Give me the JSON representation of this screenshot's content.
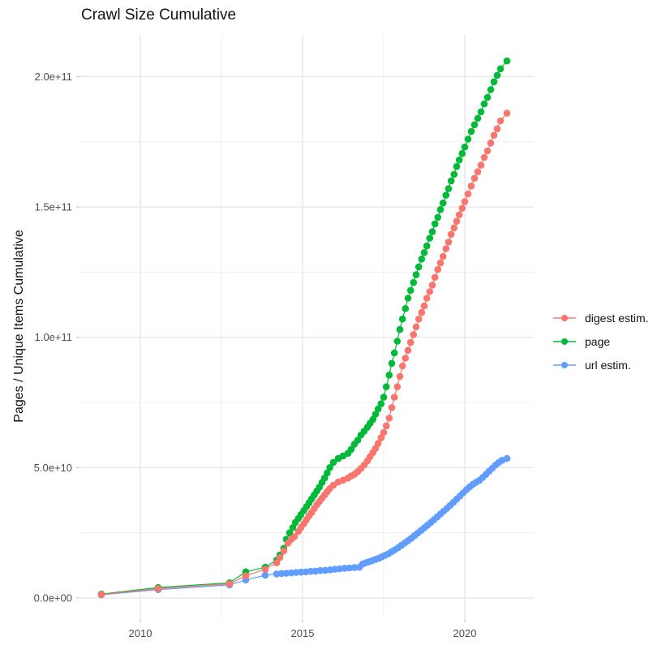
{
  "title": "Crawl Size Cumulative",
  "axes": {
    "y_title": "Pages / Unique Items Cumulative",
    "x_ticks": [
      {
        "v": 2010,
        "label": "2010"
      },
      {
        "v": 2015,
        "label": "2015"
      },
      {
        "v": 2020,
        "label": "2020"
      }
    ],
    "x_minor": [
      2012.5,
      2017.5
    ],
    "y_ticks": [
      {
        "v": 0,
        "label": "0.0e+00"
      },
      {
        "v": 50,
        "label": "5.0e+10"
      },
      {
        "v": 100,
        "label": "1.0e+11"
      },
      {
        "v": 150,
        "label": "1.5e+11"
      },
      {
        "v": 200,
        "label": "2.0e+11"
      }
    ],
    "y_minor": [
      25,
      75,
      125,
      175
    ],
    "grid": "on",
    "major_grid_color": "#e3e3e3",
    "minor_grid_color": "#f0f0f0",
    "tick_color": "#bdbdbd",
    "tick_label_color": "#4d4d4d"
  },
  "legend": {
    "position": "right",
    "entries": [
      {
        "label": "digest estim.",
        "color": "#F8766D"
      },
      {
        "label": "page",
        "color": "#00BA38"
      },
      {
        "label": "url estim.",
        "color": "#619CFF"
      }
    ]
  },
  "chart_data": {
    "type": "scatter",
    "mode": "line+points",
    "title": "Crawl Size Cumulative",
    "xlabel": "",
    "ylabel": "Pages / Unique Items Cumulative",
    "x_unit": "year (decimal)",
    "value_unit": "pages, stored in billions (1e9)",
    "xlim": [
      2008.125,
      2022.125
    ],
    "ylim_billion": [
      -8.1,
      216
    ],
    "series": [
      {
        "name": "digest estim.",
        "color": "#F8766D",
        "z": 3,
        "points": [
          [
            2008.8,
            1.3
          ],
          [
            2010.55,
            3.6
          ],
          [
            2012.75,
            5.4
          ],
          [
            2013.25,
            8.5
          ],
          [
            2013.85,
            11
          ],
          [
            2014.2,
            13.5
          ],
          [
            2014.3,
            15.5
          ],
          [
            2014.42,
            18
          ],
          [
            2014.55,
            21
          ],
          [
            2014.65,
            22.5
          ],
          [
            2014.75,
            23.5
          ],
          [
            2014.87,
            25.5
          ],
          [
            2014.95,
            27
          ],
          [
            2015.04,
            28.5
          ],
          [
            2015.12,
            30
          ],
          [
            2015.2,
            31.5
          ],
          [
            2015.28,
            32.8
          ],
          [
            2015.36,
            34.3
          ],
          [
            2015.44,
            35.8
          ],
          [
            2015.52,
            37
          ],
          [
            2015.6,
            38.3
          ],
          [
            2015.68,
            39.5
          ],
          [
            2015.76,
            40.8
          ],
          [
            2015.84,
            42
          ],
          [
            2015.95,
            43.3
          ],
          [
            2016.1,
            44.5
          ],
          [
            2016.25,
            45.2
          ],
          [
            2016.4,
            46
          ],
          [
            2016.5,
            46.8
          ],
          [
            2016.6,
            47.5
          ],
          [
            2016.7,
            48.5
          ],
          [
            2016.8,
            49.7
          ],
          [
            2016.9,
            51
          ],
          [
            2017.0,
            52.6
          ],
          [
            2017.08,
            54.2
          ],
          [
            2017.17,
            55.8
          ],
          [
            2017.25,
            57.4
          ],
          [
            2017.33,
            59.3
          ],
          [
            2017.42,
            61.5
          ],
          [
            2017.5,
            63.5
          ],
          [
            2017.58,
            66
          ],
          [
            2017.67,
            69
          ],
          [
            2017.75,
            73
          ],
          [
            2017.83,
            77
          ],
          [
            2017.92,
            81
          ],
          [
            2018.0,
            85
          ],
          [
            2018.08,
            89
          ],
          [
            2018.17,
            92
          ],
          [
            2018.25,
            95
          ],
          [
            2018.33,
            98
          ],
          [
            2018.42,
            101
          ],
          [
            2018.5,
            104
          ],
          [
            2018.58,
            107
          ],
          [
            2018.67,
            109.5
          ],
          [
            2018.75,
            112
          ],
          [
            2018.83,
            115
          ],
          [
            2018.92,
            117.5
          ],
          [
            2019.0,
            120
          ],
          [
            2019.08,
            123
          ],
          [
            2019.17,
            126
          ],
          [
            2019.25,
            128.5
          ],
          [
            2019.33,
            131
          ],
          [
            2019.42,
            134
          ],
          [
            2019.5,
            136.5
          ],
          [
            2019.58,
            139.5
          ],
          [
            2019.67,
            142
          ],
          [
            2019.75,
            144.5
          ],
          [
            2019.83,
            147
          ],
          [
            2019.92,
            149.5
          ],
          [
            2020.0,
            152
          ],
          [
            2020.1,
            155
          ],
          [
            2020.2,
            158
          ],
          [
            2020.3,
            161
          ],
          [
            2020.4,
            163.5
          ],
          [
            2020.5,
            166
          ],
          [
            2020.6,
            169
          ],
          [
            2020.7,
            171.5
          ],
          [
            2020.8,
            174.5
          ],
          [
            2020.9,
            177.5
          ],
          [
            2021.0,
            180
          ],
          [
            2021.1,
            183
          ],
          [
            2021.3,
            186
          ]
        ]
      },
      {
        "name": "page",
        "color": "#00BA38",
        "z": 1,
        "points": [
          [
            2008.8,
            1.5
          ],
          [
            2010.55,
            4
          ],
          [
            2012.75,
            5.8
          ],
          [
            2013.25,
            10
          ],
          [
            2013.85,
            11.8
          ],
          [
            2014.2,
            14.5
          ],
          [
            2014.3,
            16.5
          ],
          [
            2014.42,
            19
          ],
          [
            2014.5,
            22.5
          ],
          [
            2014.6,
            25
          ],
          [
            2014.7,
            27
          ],
          [
            2014.78,
            29
          ],
          [
            2014.87,
            30.5
          ],
          [
            2014.95,
            32
          ],
          [
            2015.04,
            33.5
          ],
          [
            2015.12,
            35
          ],
          [
            2015.2,
            36.5
          ],
          [
            2015.28,
            38
          ],
          [
            2015.36,
            39.5
          ],
          [
            2015.44,
            41
          ],
          [
            2015.52,
            42.5
          ],
          [
            2015.6,
            44.3
          ],
          [
            2015.68,
            46
          ],
          [
            2015.76,
            48
          ],
          [
            2015.84,
            50
          ],
          [
            2015.95,
            52
          ],
          [
            2016.1,
            53.5
          ],
          [
            2016.25,
            54.5
          ],
          [
            2016.4,
            55.5
          ],
          [
            2016.5,
            57
          ],
          [
            2016.6,
            59
          ],
          [
            2016.7,
            60.5
          ],
          [
            2016.8,
            62.5
          ],
          [
            2016.9,
            64
          ],
          [
            2017.0,
            65.5
          ],
          [
            2017.08,
            67
          ],
          [
            2017.17,
            68.5
          ],
          [
            2017.25,
            70.5
          ],
          [
            2017.33,
            72.5
          ],
          [
            2017.42,
            74.5
          ],
          [
            2017.5,
            77
          ],
          [
            2017.58,
            81
          ],
          [
            2017.67,
            85.5
          ],
          [
            2017.75,
            90
          ],
          [
            2017.83,
            94
          ],
          [
            2017.92,
            98.5
          ],
          [
            2018.0,
            103
          ],
          [
            2018.08,
            107
          ],
          [
            2018.17,
            111
          ],
          [
            2018.25,
            115
          ],
          [
            2018.33,
            118
          ],
          [
            2018.42,
            121
          ],
          [
            2018.5,
            124
          ],
          [
            2018.58,
            127
          ],
          [
            2018.67,
            130
          ],
          [
            2018.75,
            132.5
          ],
          [
            2018.83,
            135
          ],
          [
            2018.92,
            138
          ],
          [
            2019.0,
            140.5
          ],
          [
            2019.08,
            143.5
          ],
          [
            2019.17,
            146
          ],
          [
            2019.25,
            149
          ],
          [
            2019.33,
            151.5
          ],
          [
            2019.42,
            154.5
          ],
          [
            2019.5,
            157
          ],
          [
            2019.58,
            160
          ],
          [
            2019.67,
            162.5
          ],
          [
            2019.75,
            165.5
          ],
          [
            2019.83,
            168
          ],
          [
            2019.92,
            170.5
          ],
          [
            2020.0,
            173
          ],
          [
            2020.1,
            176
          ],
          [
            2020.2,
            179
          ],
          [
            2020.3,
            181.5
          ],
          [
            2020.4,
            184
          ],
          [
            2020.5,
            186.5
          ],
          [
            2020.6,
            189.5
          ],
          [
            2020.7,
            192
          ],
          [
            2020.8,
            195
          ],
          [
            2020.9,
            198
          ],
          [
            2021.0,
            200.5
          ],
          [
            2021.1,
            203
          ],
          [
            2021.3,
            206
          ]
        ]
      },
      {
        "name": "url estim.",
        "color": "#619CFF",
        "z": 2,
        "points": [
          [
            2008.8,
            1.2
          ],
          [
            2010.55,
            3.2
          ],
          [
            2012.75,
            5
          ],
          [
            2013.25,
            6.9
          ],
          [
            2013.85,
            8.7
          ],
          [
            2014.2,
            9.2
          ],
          [
            2014.35,
            9.4
          ],
          [
            2014.5,
            9.5
          ],
          [
            2014.65,
            9.6
          ],
          [
            2014.8,
            9.8
          ],
          [
            2014.95,
            9.9
          ],
          [
            2015.1,
            10
          ],
          [
            2015.25,
            10.2
          ],
          [
            2015.4,
            10.3
          ],
          [
            2015.55,
            10.5
          ],
          [
            2015.7,
            10.6
          ],
          [
            2015.85,
            10.8
          ],
          [
            2016.0,
            11
          ],
          [
            2016.15,
            11.2
          ],
          [
            2016.3,
            11.4
          ],
          [
            2016.45,
            11.5
          ],
          [
            2016.6,
            11.7
          ],
          [
            2016.75,
            11.8
          ],
          [
            2016.85,
            13
          ],
          [
            2016.95,
            13.5
          ],
          [
            2017.05,
            13.9
          ],
          [
            2017.15,
            14.3
          ],
          [
            2017.25,
            14.8
          ],
          [
            2017.35,
            15.2
          ],
          [
            2017.45,
            15.8
          ],
          [
            2017.55,
            16.4
          ],
          [
            2017.65,
            17
          ],
          [
            2017.75,
            17.8
          ],
          [
            2017.85,
            18.5
          ],
          [
            2017.95,
            19.3
          ],
          [
            2018.05,
            20.2
          ],
          [
            2018.15,
            21.1
          ],
          [
            2018.25,
            22
          ],
          [
            2018.35,
            22.9
          ],
          [
            2018.45,
            23.9
          ],
          [
            2018.55,
            24.9
          ],
          [
            2018.65,
            25.9
          ],
          [
            2018.75,
            26.9
          ],
          [
            2018.85,
            27.9
          ],
          [
            2018.95,
            28.9
          ],
          [
            2019.05,
            30
          ],
          [
            2019.15,
            31.1
          ],
          [
            2019.25,
            32.2
          ],
          [
            2019.35,
            33.3
          ],
          [
            2019.45,
            34.4
          ],
          [
            2019.55,
            35.5
          ],
          [
            2019.65,
            36.7
          ],
          [
            2019.75,
            37.9
          ],
          [
            2019.85,
            39.1
          ],
          [
            2019.95,
            40.3
          ],
          [
            2020.05,
            41.5
          ],
          [
            2020.15,
            42.6
          ],
          [
            2020.25,
            43.6
          ],
          [
            2020.35,
            44.4
          ],
          [
            2020.45,
            45.1
          ],
          [
            2020.55,
            46.2
          ],
          [
            2020.65,
            47.4
          ],
          [
            2020.75,
            48.6
          ],
          [
            2020.85,
            49.8
          ],
          [
            2020.95,
            51
          ],
          [
            2021.05,
            52
          ],
          [
            2021.15,
            52.8
          ],
          [
            2021.3,
            53.5
          ]
        ]
      }
    ]
  }
}
